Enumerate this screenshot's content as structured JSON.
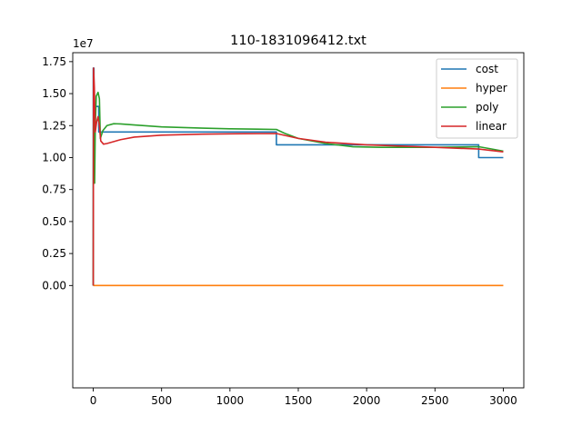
{
  "chart_data": {
    "type": "line",
    "title": "110-1831096412.txt",
    "xlabel": "",
    "ylabel": "",
    "y_offset_label": "1e7",
    "xlim": [
      -150,
      3150
    ],
    "ylim": [
      -0.8,
      1.82
    ],
    "x_ticks": [
      0,
      500,
      1000,
      1500,
      2000,
      2500,
      3000
    ],
    "x_tick_labels": [
      "0",
      "500",
      "1000",
      "1500",
      "2000",
      "2500",
      "3000"
    ],
    "y_ticks": [
      0.0,
      0.25,
      0.5,
      0.75,
      1.0,
      1.25,
      1.5,
      1.75
    ],
    "y_tick_labels": [
      "0.00",
      "0.25",
      "0.50",
      "0.75",
      "1.00",
      "1.25",
      "1.50",
      "1.75"
    ],
    "grid": false,
    "legend_position": "top-right",
    "series": [
      {
        "name": "cost",
        "color": "#1f77b4",
        "points": [
          [
            0,
            0
          ],
          [
            0,
            1.7
          ],
          [
            5,
            1.7
          ],
          [
            5,
            1.4
          ],
          [
            15,
            1.4
          ],
          [
            15,
            1.4
          ],
          [
            40,
            1.4
          ],
          [
            40,
            1.2
          ],
          [
            1340,
            1.2
          ],
          [
            1340,
            1.1
          ],
          [
            2820,
            1.1
          ],
          [
            2820,
            1.0
          ],
          [
            3000,
            1.0
          ]
        ]
      },
      {
        "name": "hyper",
        "color": "#ff7f0e",
        "points": [
          [
            0,
            0
          ],
          [
            3000,
            0
          ]
        ]
      },
      {
        "name": "poly",
        "color": "#2ca02c",
        "points": [
          [
            0,
            0
          ],
          [
            2,
            1.6
          ],
          [
            6,
            1.35
          ],
          [
            10,
            0.8
          ],
          [
            15,
            1.25
          ],
          [
            22,
            1.48
          ],
          [
            35,
            1.51
          ],
          [
            45,
            1.46
          ],
          [
            52,
            1.15
          ],
          [
            70,
            1.21
          ],
          [
            100,
            1.25
          ],
          [
            150,
            1.265
          ],
          [
            200,
            1.263
          ],
          [
            300,
            1.255
          ],
          [
            500,
            1.24
          ],
          [
            800,
            1.23
          ],
          [
            1000,
            1.225
          ],
          [
            1200,
            1.222
          ],
          [
            1340,
            1.22
          ],
          [
            1400,
            1.19
          ],
          [
            1500,
            1.15
          ],
          [
            1700,
            1.11
          ],
          [
            1900,
            1.085
          ],
          [
            2100,
            1.08
          ],
          [
            2500,
            1.08
          ],
          [
            2820,
            1.085
          ],
          [
            2900,
            1.07
          ],
          [
            3000,
            1.05
          ]
        ]
      },
      {
        "name": "linear",
        "color": "#d62728",
        "points": [
          [
            0,
            0
          ],
          [
            2,
            1.7
          ],
          [
            8,
            1.55
          ],
          [
            15,
            1.2
          ],
          [
            25,
            1.28
          ],
          [
            35,
            1.32
          ],
          [
            45,
            1.25
          ],
          [
            55,
            1.13
          ],
          [
            75,
            1.105
          ],
          [
            100,
            1.11
          ],
          [
            200,
            1.14
          ],
          [
            300,
            1.16
          ],
          [
            500,
            1.175
          ],
          [
            800,
            1.183
          ],
          [
            1100,
            1.187
          ],
          [
            1340,
            1.188
          ],
          [
            1500,
            1.15
          ],
          [
            1700,
            1.12
          ],
          [
            2000,
            1.1
          ],
          [
            2500,
            1.08
          ],
          [
            2820,
            1.067
          ],
          [
            3000,
            1.045
          ]
        ]
      }
    ]
  }
}
